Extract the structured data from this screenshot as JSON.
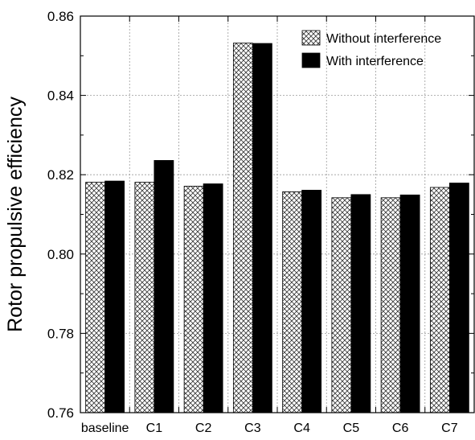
{
  "chart_data": {
    "type": "bar",
    "categories": [
      "baseline",
      "C1",
      "C2",
      "C3",
      "C4",
      "C5",
      "C6",
      "C7"
    ],
    "series": [
      {
        "name": "Without interference",
        "values": [
          0.8181,
          0.8181,
          0.8171,
          0.8532,
          0.8157,
          0.8142,
          0.8142,
          0.8168
        ],
        "pattern": "crosshatch"
      },
      {
        "name": "With interference",
        "values": [
          0.8184,
          0.8236,
          0.8177,
          0.8531,
          0.8161,
          0.815,
          0.8149,
          0.8179
        ],
        "color": "#000000"
      }
    ],
    "xlabel": "",
    "ylabel": "Rotor propulsive efficiency",
    "ylim": [
      0.76,
      0.86
    ],
    "yticks": [
      0.76,
      0.78,
      0.8,
      0.82,
      0.84,
      0.86
    ],
    "ytick_labels": [
      "0.76",
      "0.78",
      "0.80",
      "0.82",
      "0.84",
      "0.86"
    ],
    "grid": true,
    "legend_position": "top-right"
  }
}
